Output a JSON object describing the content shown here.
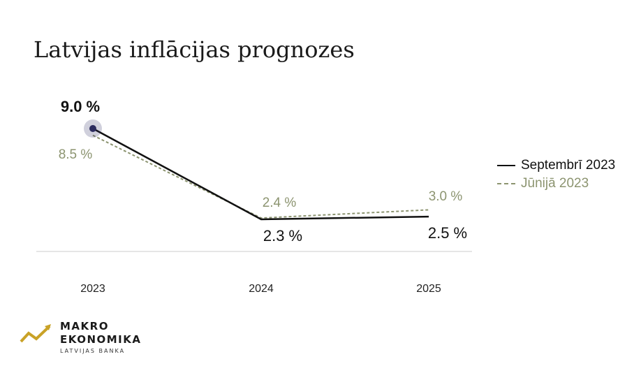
{
  "title": "Latvijas inflācijas prognozes",
  "chart_data": {
    "type": "line",
    "title": "Latvijas inflācijas prognozes",
    "xlabel": "",
    "ylabel": "",
    "x": [
      "2023",
      "2024",
      "2025"
    ],
    "series": [
      {
        "name": "Septembrī 2023",
        "values": [
          9.0,
          2.3,
          2.5
        ],
        "labels": [
          "9.0 %",
          "2.3 %",
          "2.5 %"
        ],
        "color": "#111111",
        "style": "solid"
      },
      {
        "name": "Jūnijā 2023",
        "values": [
          8.5,
          2.4,
          3.0
        ],
        "labels": [
          "8.5 %",
          "2.4 %",
          "3.0 %"
        ],
        "color": "#8c9470",
        "style": "dashed"
      }
    ],
    "highlight_color": "#2b2b5e",
    "baseline_color": "#cccccc",
    "grid": false,
    "legend": "right"
  },
  "logo": {
    "line1": "MAKRO",
    "line2": "EKONOMIKA",
    "sub": "LATVIJAS BANKA",
    "accent": "#c9a227"
  }
}
